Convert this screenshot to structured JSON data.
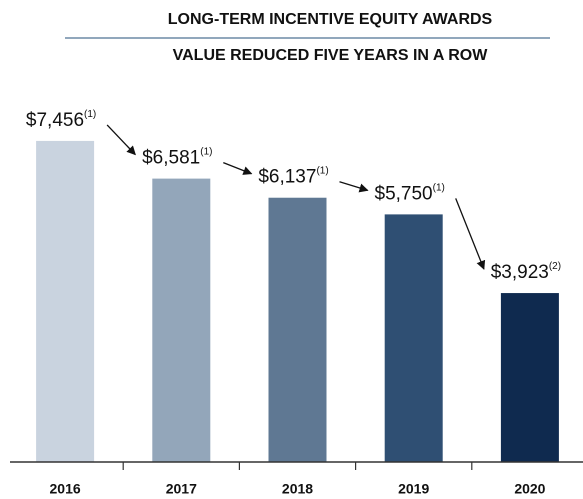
{
  "chart_data": {
    "type": "bar",
    "title": "LONG-TERM INCENTIVE EQUITY AWARDS",
    "subtitle": "VALUE REDUCED FIVE YEARS IN A ROW",
    "categories": [
      "2016",
      "2017",
      "2018",
      "2019",
      "2020"
    ],
    "values": [
      7456,
      6581,
      6137,
      5750,
      3923
    ],
    "value_labels": [
      "$7,456",
      "$6,581",
      "$6,137",
      "$5,750",
      "$3,923"
    ],
    "value_label_notes": [
      "(1)",
      "(1)",
      "(1)",
      "(1)",
      "(2)"
    ],
    "colors": [
      "#c9d3df",
      "#93a6ba",
      "#5f7893",
      "#2f4f73",
      "#0f2a4f"
    ],
    "ylim": [
      0,
      8000
    ]
  }
}
